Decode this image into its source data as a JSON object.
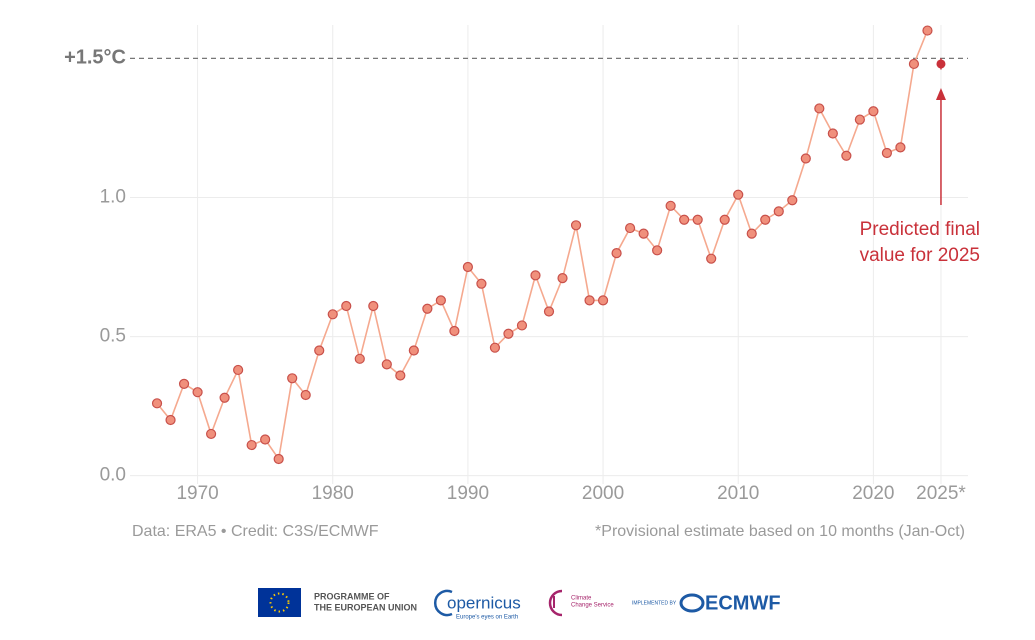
{
  "chart_data": {
    "type": "line",
    "x": [
      1967,
      1968,
      1969,
      1970,
      1971,
      1972,
      1973,
      1974,
      1975,
      1976,
      1977,
      1978,
      1979,
      1980,
      1981,
      1982,
      1983,
      1984,
      1985,
      1986,
      1987,
      1988,
      1989,
      1990,
      1991,
      1992,
      1993,
      1994,
      1995,
      1996,
      1997,
      1998,
      1999,
      2000,
      2001,
      2002,
      2003,
      2004,
      2005,
      2006,
      2007,
      2008,
      2009,
      2010,
      2011,
      2012,
      2013,
      2014,
      2015,
      2016,
      2017,
      2018,
      2019,
      2020,
      2021,
      2022,
      2023,
      2024
    ],
    "values": [
      0.26,
      0.2,
      0.33,
      0.3,
      0.15,
      0.28,
      0.38,
      0.11,
      0.13,
      0.06,
      0.35,
      0.29,
      0.45,
      0.58,
      0.61,
      0.42,
      0.61,
      0.4,
      0.36,
      0.45,
      0.6,
      0.63,
      0.52,
      0.75,
      0.69,
      0.46,
      0.51,
      0.54,
      0.72,
      0.59,
      0.71,
      0.9,
      0.63,
      0.63,
      0.8,
      0.89,
      0.87,
      0.81,
      0.97,
      0.92,
      0.92,
      0.78,
      0.92,
      1.01,
      0.87,
      0.92,
      0.95,
      0.99,
      1.14,
      1.32,
      1.23,
      1.15,
      1.28,
      1.31,
      1.16,
      1.18,
      1.48,
      1.6
    ],
    "color": "#f0907c",
    "line_color": "#f5a98f",
    "prediction": {
      "x": 2025,
      "value": 1.48,
      "error": 0.02,
      "color": "#c9313a"
    },
    "reference_line": {
      "value": 1.5,
      "label": "+1.5°C"
    },
    "annotation": {
      "lines": [
        "Predicted final",
        "value for 2025"
      ],
      "color": "#c9313a"
    },
    "xlim": [
      1965,
      2027
    ],
    "ylim": [
      -0.03,
      1.62
    ],
    "xticks": [
      1970,
      1980,
      1990,
      2000,
      2010,
      2020,
      {
        "value": 2025,
        "label": "2025*"
      }
    ],
    "yticks": [
      {
        "value": 0,
        "label": "0.0"
      },
      0.5,
      {
        "value": 1,
        "label": "1.0"
      }
    ],
    "grid": true,
    "source": "Data: ERA5 • Credit: C3S/ECMWF",
    "footnote": "*Provisional estimate based on 10 months (Jan-Oct)"
  },
  "logos": {
    "eu": [
      "PROGRAMME OF",
      "THE EUROPEAN UNION"
    ],
    "copernicus": [
      "opernicus",
      "Europe's eyes on Earth"
    ],
    "c3s": [
      "Climate",
      "Change Service"
    ],
    "ecmwf": [
      "IMPLEMENTED BY",
      "ECMWF"
    ]
  }
}
